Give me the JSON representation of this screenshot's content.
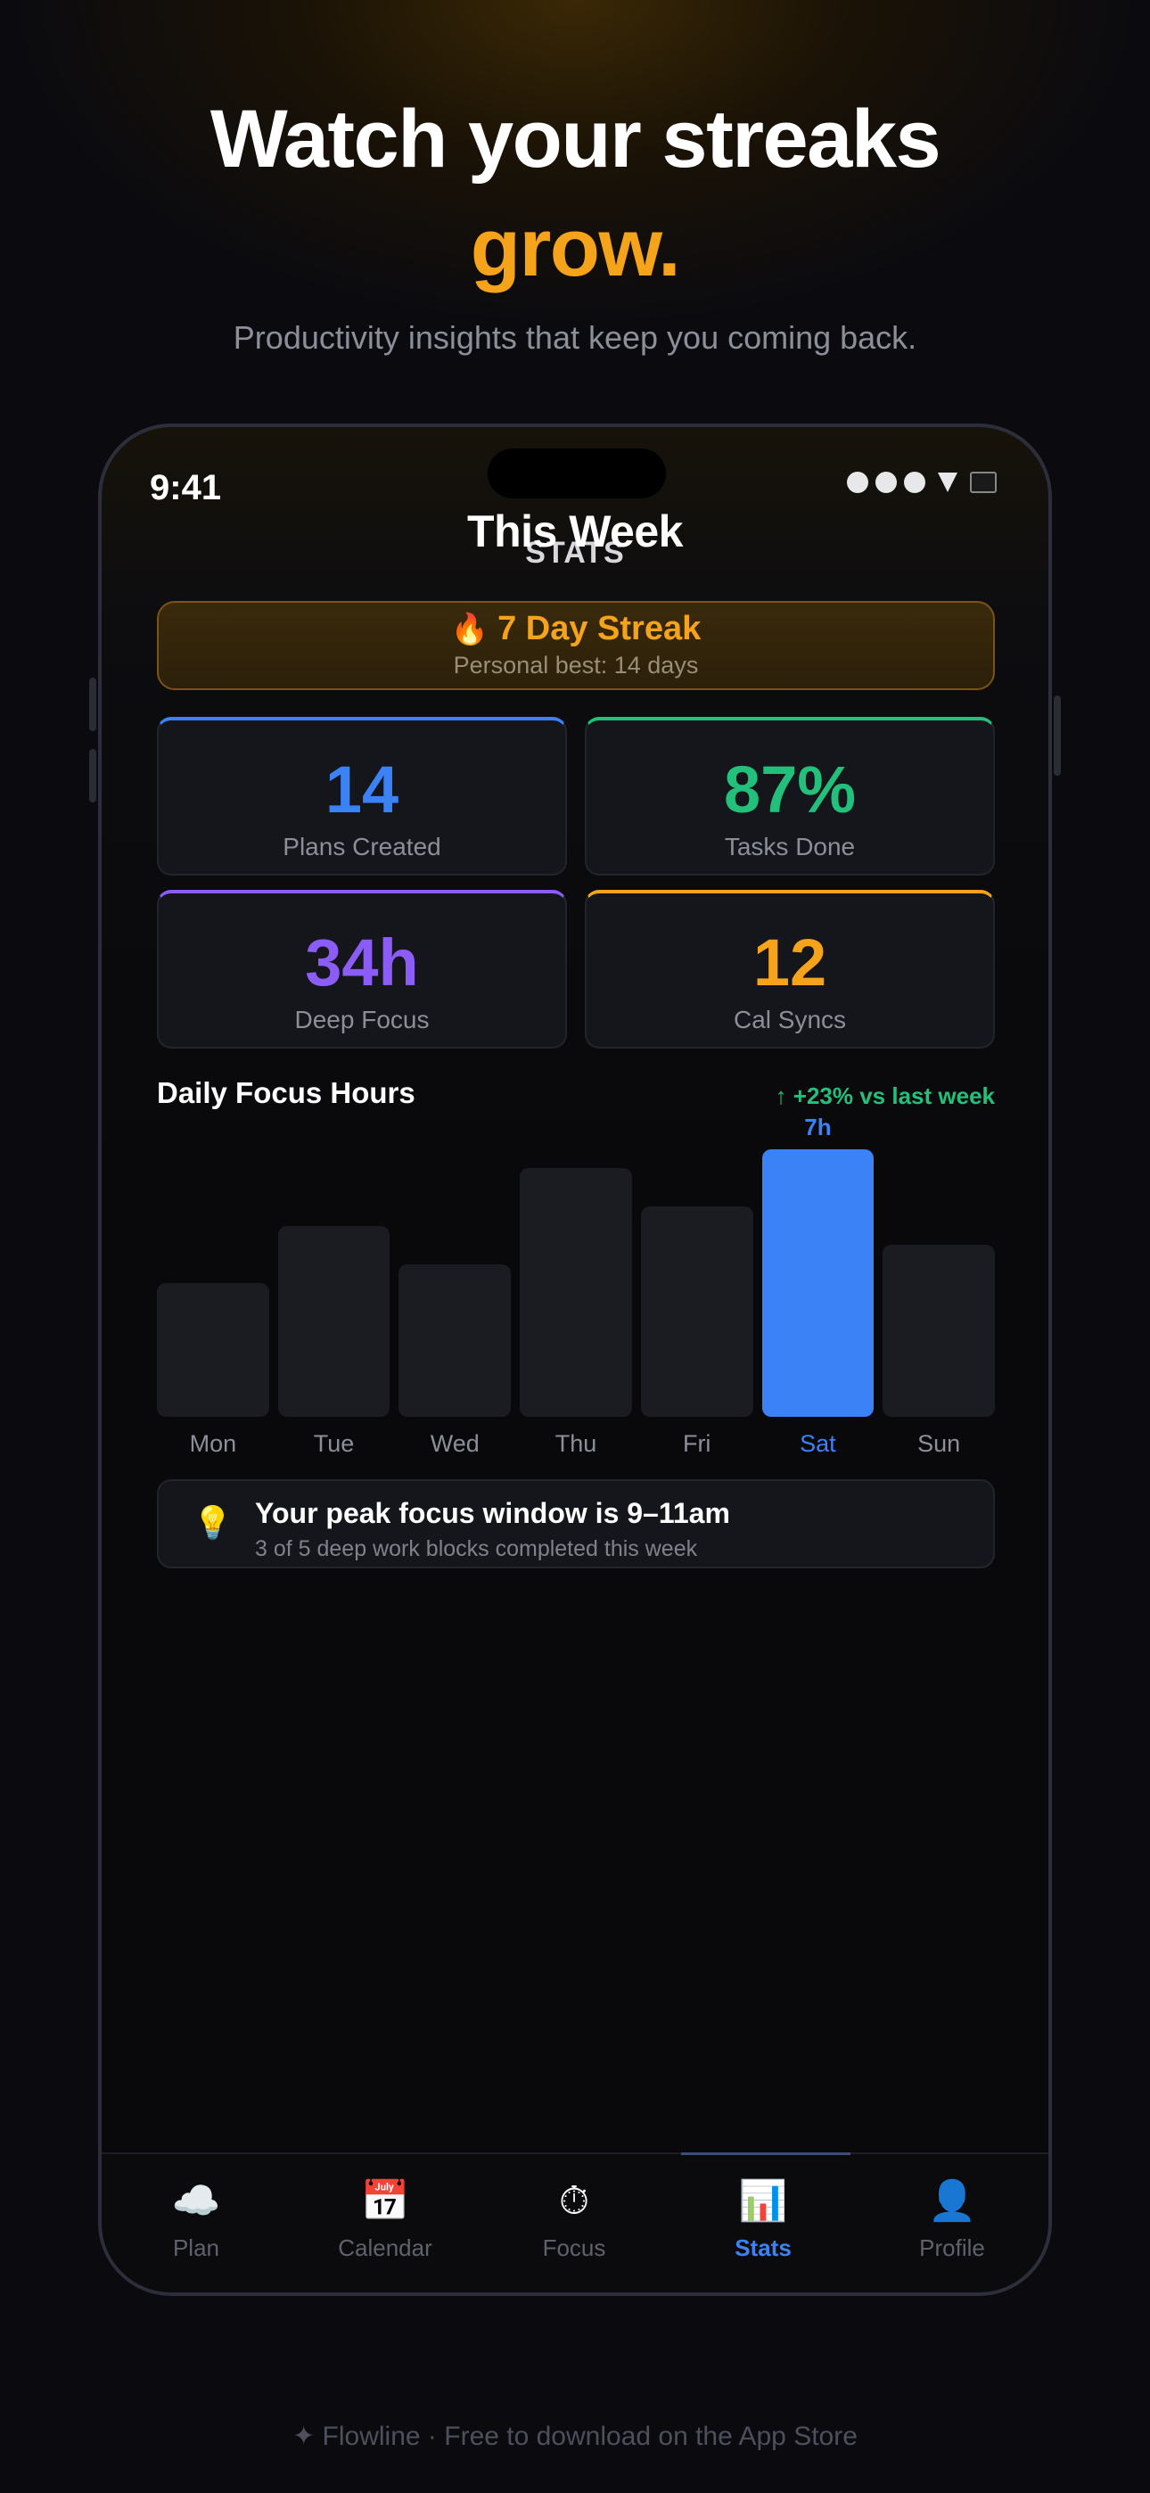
{
  "headline": {
    "line1": "Watch your streaks",
    "line2": "grow."
  },
  "subhead": "Productivity insights that keep you coming back.",
  "status_bar": {
    "time": "9:41"
  },
  "screen": {
    "title": "This Week",
    "subtitle": "STATS"
  },
  "streak": {
    "icon": "🔥",
    "title": "7 Day Streak",
    "subtitle": "Personal best: 14 days"
  },
  "stats": [
    {
      "value": "14",
      "label": "Plans Created",
      "color": "#3b82f6"
    },
    {
      "value": "87%",
      "label": "Tasks Done",
      "color": "#22c07a"
    },
    {
      "value": "34h",
      "label": "Deep Focus",
      "color": "#8b5cf6"
    },
    {
      "value": "12",
      "label": "Cal Syncs",
      "color": "#f5a31a"
    }
  ],
  "chart_data": {
    "type": "bar",
    "title": "Daily Focus Hours",
    "annotation": "↑ +23% vs last week",
    "categories": [
      "Mon",
      "Tue",
      "Wed",
      "Thu",
      "Fri",
      "Sat",
      "Sun"
    ],
    "values": [
      3.5,
      5,
      4,
      6.5,
      5.5,
      7,
      4.5
    ],
    "highlight": {
      "category": "Sat",
      "label": "7h",
      "color": "#3b82f6"
    },
    "ylim": [
      0,
      7
    ]
  },
  "tip": {
    "icon": "💡",
    "title": "Your peak focus window is 9–11am",
    "subtitle": "3 of 5 deep work blocks completed this week"
  },
  "tabs": [
    {
      "label": "Plan",
      "icon": "☁️",
      "icon_name": "cloud-icon",
      "active": false
    },
    {
      "label": "Calendar",
      "icon": "📅",
      "icon_name": "calendar-icon",
      "active": false
    },
    {
      "label": "Focus",
      "icon": "⏱",
      "icon_name": "stopwatch-icon",
      "active": false
    },
    {
      "label": "Stats",
      "icon": "📊",
      "icon_name": "bar-chart-icon",
      "active": true
    },
    {
      "label": "Profile",
      "icon": "👤",
      "icon_name": "person-icon",
      "active": false
    }
  ],
  "footer": "✦ Flowline · Free to download on the App Store"
}
